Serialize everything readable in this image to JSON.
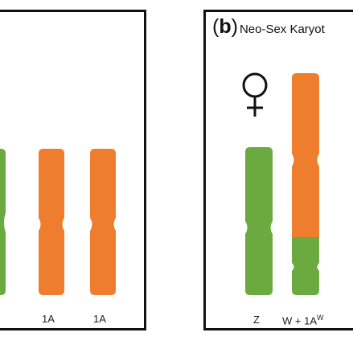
{
  "panel_b": {
    "letter": "b",
    "title": "Neo-Sex Karyot"
  },
  "labels": {
    "a_left": "1A",
    "a_right": "1A",
    "b_z": "Z",
    "b_w_prefix": "W + 1A",
    "b_w_sup": "W"
  },
  "icons": [
    "female-symbol-icon"
  ],
  "colors": {
    "green": "#6aaa3f",
    "orange": "#ef7d2e",
    "border": "#111111"
  }
}
